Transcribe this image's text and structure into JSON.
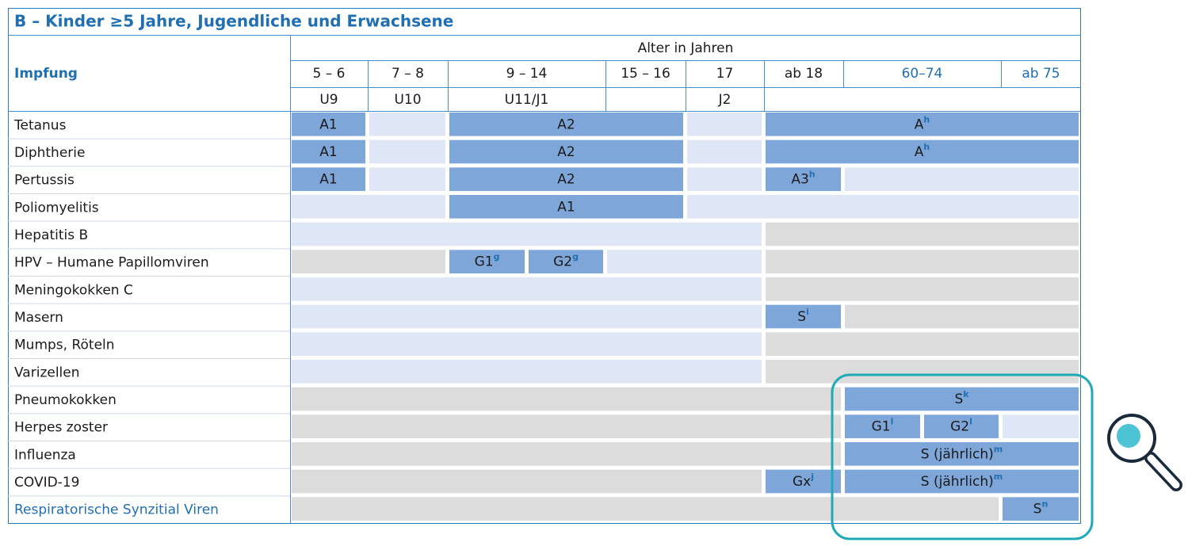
{
  "title": "B – Kinder ≥5 Jahre, Jugendliche und Erwachsene",
  "header": {
    "column_label": "Impfung",
    "age_label": "Alter in Jahren",
    "ages": [
      "5 – 6",
      "7 – 8",
      "9 – 14",
      "15 – 16",
      "17",
      "ab 18",
      "60–74",
      "ab 75"
    ],
    "checkups": [
      "U9",
      "U10",
      "U11/J1",
      "J2"
    ]
  },
  "rows": [
    {
      "name": "Tetanus",
      "cells": [
        {
          "text": "A1"
        },
        {
          "text": "A2"
        },
        {
          "text": "A",
          "sup": "h"
        }
      ]
    },
    {
      "name": "Diphtherie",
      "cells": [
        {
          "text": "A1"
        },
        {
          "text": "A2"
        },
        {
          "text": "A",
          "sup": "h"
        }
      ]
    },
    {
      "name": "Pertussis",
      "cells": [
        {
          "text": "A1"
        },
        {
          "text": "A2"
        },
        {
          "text": "A3",
          "sup": "h"
        }
      ]
    },
    {
      "name": "Poliomyelitis",
      "cells": [
        {
          "text": "A1"
        }
      ]
    },
    {
      "name": "Hepatitis B",
      "cells": []
    },
    {
      "name": "HPV – Humane Papillomviren",
      "cells": [
        {
          "text": "G1",
          "sup": "g"
        },
        {
          "text": "G2",
          "sup": "g"
        }
      ]
    },
    {
      "name": "Meningokokken C",
      "cells": []
    },
    {
      "name": "Masern",
      "cells": [
        {
          "text": "S",
          "sup": "i"
        }
      ]
    },
    {
      "name": "Mumps, Röteln",
      "cells": []
    },
    {
      "name": "Varizellen",
      "cells": []
    },
    {
      "name": "Pneumokokken",
      "cells": [
        {
          "text": "S",
          "sup": "k"
        }
      ]
    },
    {
      "name": "Herpes zoster",
      "cells": [
        {
          "text": "G1",
          "sup": "l"
        },
        {
          "text": "G2",
          "sup": "l"
        }
      ]
    },
    {
      "name": "Influenza",
      "cells": [
        {
          "text": "S (jährlich)",
          "sup": "m"
        }
      ]
    },
    {
      "name": "COVID-19",
      "cells": [
        {
          "text": "Gx",
          "sup": "j"
        },
        {
          "text": "S (jährlich)",
          "sup": "m"
        }
      ]
    },
    {
      "name": "Respiratorische Synzitial Viren",
      "cells": [
        {
          "text": "S",
          "sup": "n"
        }
      ]
    }
  ]
}
